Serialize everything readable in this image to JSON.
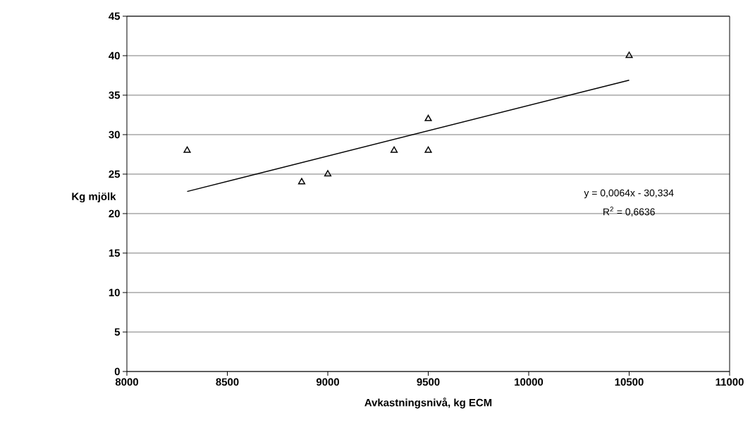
{
  "chart_data": {
    "type": "scatter",
    "xlabel": "Avkastningsnivå, kg ECM",
    "ylabel": "Kg mjölk",
    "xlim": [
      8000,
      11000
    ],
    "xticks": [
      8000,
      8500,
      9000,
      9500,
      10000,
      10500,
      11000
    ],
    "ylim": [
      0,
      45
    ],
    "yticks": [
      0,
      5,
      10,
      15,
      20,
      25,
      30,
      35,
      40,
      45
    ],
    "grid": "y",
    "series": [
      {
        "color": "#000000",
        "marker": "triangle",
        "x": [
          8300,
          8870,
          9000,
          9330,
          9500,
          9500,
          10500
        ],
        "values": [
          28,
          24,
          25,
          28,
          28,
          32,
          40
        ]
      },
      {
        "type": "line",
        "color": "#000000",
        "marker": "none",
        "line_style": "solid",
        "x": [
          8300,
          10500
        ],
        "values": [
          22.8,
          36.9
        ]
      }
    ],
    "annotations": [
      "y = 0,0064x - 30,334",
      "R$^{2}$ = 0,6636"
    ]
  }
}
